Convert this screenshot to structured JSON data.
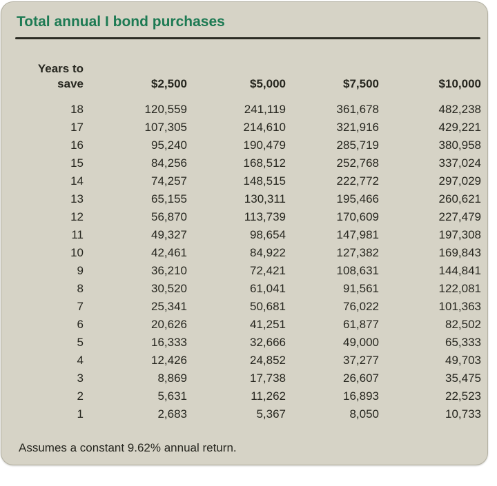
{
  "title": "Total annual I bond purchases",
  "footnote": "Assumes a constant 9.62% annual return.",
  "colors": {
    "card_bg": "#d6d3c6",
    "card_border": "#b3b0a1",
    "title_green": "#1d7a53",
    "rule_dark": "#2c2c24",
    "text_dark": "#26261f"
  },
  "table": {
    "row_header_line1": "Years to",
    "row_header_line2": "save",
    "columns": [
      "$2,500",
      "$5,000",
      "$7,500",
      "$10,000"
    ],
    "rows": [
      {
        "years": "18",
        "values": [
          "120,559",
          "241,119",
          "361,678",
          "482,238"
        ]
      },
      {
        "years": "17",
        "values": [
          "107,305",
          "214,610",
          "321,916",
          "429,221"
        ]
      },
      {
        "years": "16",
        "values": [
          "95,240",
          "190,479",
          "285,719",
          "380,958"
        ]
      },
      {
        "years": "15",
        "values": [
          "84,256",
          "168,512",
          "252,768",
          "337,024"
        ]
      },
      {
        "years": "14",
        "values": [
          "74,257",
          "148,515",
          "222,772",
          "297,029"
        ]
      },
      {
        "years": "13",
        "values": [
          "65,155",
          "130,311",
          "195,466",
          "260,621"
        ]
      },
      {
        "years": "12",
        "values": [
          "56,870",
          "113,739",
          "170,609",
          "227,479"
        ]
      },
      {
        "years": "11",
        "values": [
          "49,327",
          "98,654",
          "147,981",
          "197,308"
        ]
      },
      {
        "years": "10",
        "values": [
          "42,461",
          "84,922",
          "127,382",
          "169,843"
        ]
      },
      {
        "years": "9",
        "values": [
          "36,210",
          "72,421",
          "108,631",
          "144,841"
        ]
      },
      {
        "years": "8",
        "values": [
          "30,520",
          "61,041",
          "91,561",
          "122,081"
        ]
      },
      {
        "years": "7",
        "values": [
          "25,341",
          "50,681",
          "76,022",
          "101,363"
        ]
      },
      {
        "years": "6",
        "values": [
          "20,626",
          "41,251",
          "61,877",
          "82,502"
        ]
      },
      {
        "years": "5",
        "values": [
          "16,333",
          "32,666",
          "49,000",
          "65,333"
        ]
      },
      {
        "years": "4",
        "values": [
          "12,426",
          "24,852",
          "37,277",
          "49,703"
        ]
      },
      {
        "years": "3",
        "values": [
          "8,869",
          "17,738",
          "26,607",
          "35,475"
        ]
      },
      {
        "years": "2",
        "values": [
          "5,631",
          "11,262",
          "16,893",
          "22,523"
        ]
      },
      {
        "years": "1",
        "values": [
          "2,683",
          "5,367",
          "8,050",
          "10,733"
        ]
      }
    ]
  },
  "chart_data": {
    "type": "table",
    "title": "Total annual I bond purchases",
    "row_label": "Years to save",
    "columns": [
      "$2,500",
      "$5,000",
      "$7,500",
      "$10,000"
    ],
    "years": [
      18,
      17,
      16,
      15,
      14,
      13,
      12,
      11,
      10,
      9,
      8,
      7,
      6,
      5,
      4,
      3,
      2,
      1
    ],
    "values": [
      [
        120559,
        241119,
        361678,
        482238
      ],
      [
        107305,
        214610,
        321916,
        429221
      ],
      [
        95240,
        190479,
        285719,
        380958
      ],
      [
        84256,
        168512,
        252768,
        337024
      ],
      [
        74257,
        148515,
        222772,
        297029
      ],
      [
        65155,
        130311,
        195466,
        260621
      ],
      [
        56870,
        113739,
        170609,
        227479
      ],
      [
        49327,
        98654,
        147981,
        197308
      ],
      [
        42461,
        84922,
        127382,
        169843
      ],
      [
        36210,
        72421,
        108631,
        144841
      ],
      [
        30520,
        61041,
        91561,
        122081
      ],
      [
        25341,
        50681,
        76022,
        101363
      ],
      [
        20626,
        41251,
        61877,
        82502
      ],
      [
        16333,
        32666,
        49000,
        65333
      ],
      [
        12426,
        24852,
        37277,
        49703
      ],
      [
        8869,
        17738,
        26607,
        35475
      ],
      [
        5631,
        11262,
        16893,
        22523
      ],
      [
        2683,
        5367,
        8050,
        10733
      ]
    ],
    "footnote": "Assumes a constant 9.62% annual return.",
    "assumed_annual_return_pct": 9.62
  }
}
